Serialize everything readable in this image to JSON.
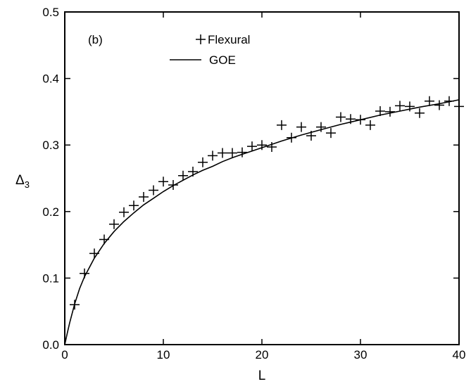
{
  "chart_data": {
    "type": "scatter",
    "panel_label": "(b)",
    "xlabel": "L",
    "ylabel": "Δ",
    "ylabel_sub": "3",
    "xlim": [
      0,
      40
    ],
    "ylim": [
      0,
      0.5
    ],
    "x_ticks": [
      0,
      10,
      20,
      30,
      40
    ],
    "y_ticks": [
      0.0,
      0.1,
      0.2,
      0.3,
      0.4,
      0.5
    ],
    "x_tick_labels": [
      "0",
      "10",
      "20",
      "30",
      "40"
    ],
    "y_tick_labels": [
      "0.0",
      "0.1",
      "0.2",
      "0.3",
      "0.4",
      "0.5"
    ],
    "grid": false,
    "legend_position": "top-center",
    "series": [
      {
        "name": "Flexural",
        "kind": "scatter",
        "marker": "plus",
        "color": "#000000",
        "points": [
          [
            1,
            0.06
          ],
          [
            2,
            0.107
          ],
          [
            3,
            0.137
          ],
          [
            4,
            0.158
          ],
          [
            5,
            0.181
          ],
          [
            6,
            0.199
          ],
          [
            7,
            0.209
          ],
          [
            8,
            0.222
          ],
          [
            9,
            0.232
          ],
          [
            10,
            0.245
          ],
          [
            11,
            0.24
          ],
          [
            12,
            0.254
          ],
          [
            13,
            0.26
          ],
          [
            14,
            0.274
          ],
          [
            15,
            0.284
          ],
          [
            16,
            0.288
          ],
          [
            17,
            0.288
          ],
          [
            18,
            0.289
          ],
          [
            19,
            0.298
          ],
          [
            20,
            0.3
          ],
          [
            21,
            0.297
          ],
          [
            22,
            0.33
          ],
          [
            23,
            0.311
          ],
          [
            24,
            0.327
          ],
          [
            25,
            0.314
          ],
          [
            26,
            0.327
          ],
          [
            27,
            0.318
          ],
          [
            28,
            0.342
          ],
          [
            29,
            0.339
          ],
          [
            30,
            0.338
          ],
          [
            31,
            0.33
          ],
          [
            32,
            0.351
          ],
          [
            33,
            0.35
          ],
          [
            34,
            0.359
          ],
          [
            35,
            0.358
          ],
          [
            36,
            0.348
          ],
          [
            37,
            0.366
          ],
          [
            38,
            0.36
          ],
          [
            39,
            0.366
          ],
          [
            40,
            0.358
          ]
        ]
      },
      {
        "name": "GOE",
        "kind": "line",
        "color": "#000000",
        "points": [
          [
            0,
            0.0
          ],
          [
            0.25,
            0.017
          ],
          [
            0.5,
            0.033
          ],
          [
            1,
            0.061
          ],
          [
            1.5,
            0.084
          ],
          [
            2,
            0.102
          ],
          [
            3,
            0.13
          ],
          [
            4,
            0.152
          ],
          [
            5,
            0.17
          ],
          [
            6,
            0.185
          ],
          [
            7,
            0.198
          ],
          [
            8,
            0.21
          ],
          [
            9,
            0.22
          ],
          [
            10,
            0.23
          ],
          [
            11,
            0.239
          ],
          [
            12,
            0.247
          ],
          [
            13,
            0.255
          ],
          [
            14,
            0.262
          ],
          [
            15,
            0.268
          ],
          [
            16,
            0.275
          ],
          [
            17,
            0.281
          ],
          [
            18,
            0.286
          ],
          [
            19,
            0.291
          ],
          [
            20,
            0.296
          ],
          [
            22,
            0.306
          ],
          [
            24,
            0.315
          ],
          [
            26,
            0.323
          ],
          [
            28,
            0.331
          ],
          [
            30,
            0.338
          ],
          [
            32,
            0.345
          ],
          [
            34,
            0.351
          ],
          [
            36,
            0.357
          ],
          [
            38,
            0.362
          ],
          [
            40,
            0.368
          ]
        ]
      }
    ]
  }
}
